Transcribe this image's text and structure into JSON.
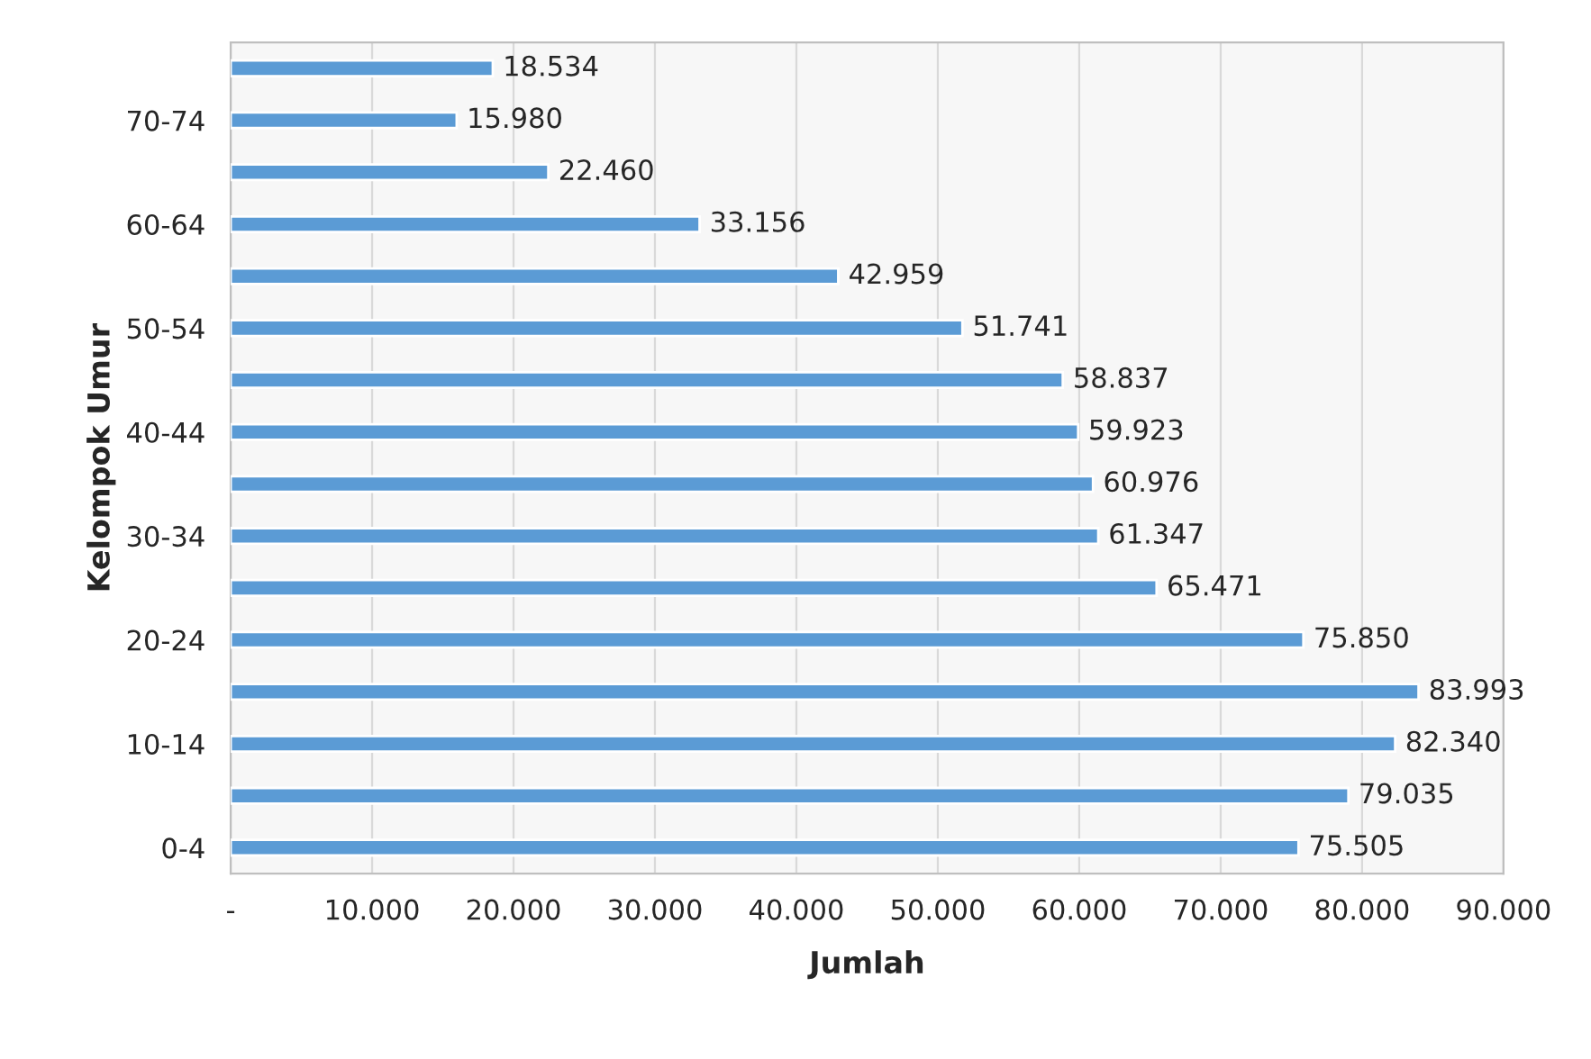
{
  "chart_data": {
    "type": "bar",
    "orientation": "horizontal",
    "xlabel": "Jumlah",
    "ylabel": "Kelompok Umur",
    "categories": [
      null,
      "70-74",
      null,
      "60-64",
      null,
      "50-54",
      null,
      "40-44",
      null,
      "30-34",
      null,
      "20-24",
      null,
      "10-14",
      null,
      "0-4"
    ],
    "values": [
      18534,
      15980,
      22460,
      33156,
      42959,
      51741,
      58837,
      59923,
      60976,
      61347,
      65471,
      75850,
      83993,
      82340,
      79035,
      75505
    ],
    "value_labels": [
      "18.534",
      "15.980",
      "22.460",
      "33.156",
      "42.959",
      "51.741",
      "58.837",
      "59.923",
      "60.976",
      "61.347",
      "65.471",
      "75.850",
      "83.993",
      "82.340",
      "79.035",
      "75.505"
    ],
    "color": "#5b9bd5",
    "xlim": [
      0,
      90000
    ],
    "xticks": [
      {
        "value": 0,
        "label": "-"
      },
      {
        "value": 10000,
        "label": "10.000"
      },
      {
        "value": 20000,
        "label": "20.000"
      },
      {
        "value": 30000,
        "label": "30.000"
      },
      {
        "value": 40000,
        "label": "40.000"
      },
      {
        "value": 50000,
        "label": "50.000"
      },
      {
        "value": 60000,
        "label": "60.000"
      },
      {
        "value": 70000,
        "label": "70.000"
      },
      {
        "value": 80000,
        "label": "80.000"
      },
      {
        "value": 90000,
        "label": "90.000"
      }
    ],
    "grid": "x"
  }
}
